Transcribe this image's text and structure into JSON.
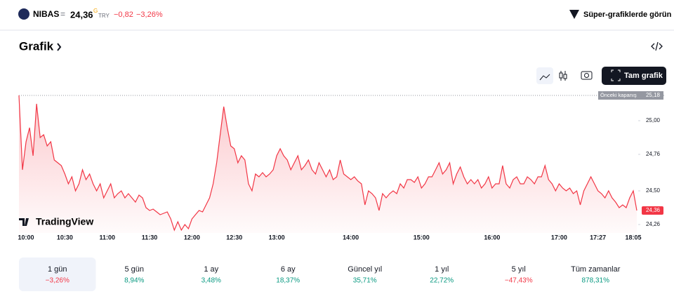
{
  "header": {
    "symbol": "NIBAS",
    "equals": "=",
    "price": "24,36",
    "price_mark": "G",
    "currency": "TRY",
    "change": "−0,82",
    "change_pct": "−3,26%",
    "link": "Süper-grafiklerde görün"
  },
  "section_title": "Grafik",
  "full_chart_button": "Tam grafik",
  "logo": "TradingView",
  "chart_data": {
    "type": "line",
    "color": "#f23645",
    "xlim": [
      0,
      175
    ],
    "xticks": [
      {
        "value": 2,
        "label": "10:00"
      },
      {
        "value": 13,
        "label": "10:30"
      },
      {
        "value": 25,
        "label": "11:00"
      },
      {
        "value": 37,
        "label": "11:30"
      },
      {
        "value": 49,
        "label": "12:00"
      },
      {
        "value": 61,
        "label": "12:30"
      },
      {
        "value": 73,
        "label": "13:00"
      },
      {
        "value": 94,
        "label": "14:00"
      },
      {
        "value": 114,
        "label": "15:00"
      },
      {
        "value": 134,
        "label": "16:00"
      },
      {
        "value": 153,
        "label": "17:00"
      },
      {
        "value": 164,
        "label": "17:27"
      },
      {
        "value": 174,
        "label": "18:05"
      }
    ],
    "ylim": [
      24.2,
      25.22
    ],
    "yticks": [
      {
        "value": 24.26,
        "label": "24,26"
      },
      {
        "value": 24.5,
        "label": "24,50"
      },
      {
        "value": 24.76,
        "label": "24,76"
      },
      {
        "value": 25,
        "label": "25,00"
      }
    ],
    "previous_close": {
      "label": "Önceki kapanış",
      "value": 25.18,
      "value_label": "25,18"
    },
    "last": {
      "value": 24.36,
      "value_label": "24,36"
    },
    "values": [
      25.18,
      24.65,
      24.85,
      24.95,
      24.75,
      25.12,
      24.88,
      24.9,
      24.82,
      24.85,
      24.72,
      24.7,
      24.68,
      24.62,
      24.55,
      24.6,
      24.5,
      24.55,
      24.65,
      24.58,
      24.62,
      24.55,
      24.5,
      24.55,
      24.45,
      24.5,
      24.55,
      24.45,
      24.48,
      24.5,
      24.45,
      24.48,
      24.45,
      24.42,
      24.47,
      24.45,
      24.38,
      24.36,
      24.37,
      24.35,
      24.33,
      24.34,
      24.35,
      24.3,
      24.22,
      24.28,
      24.22,
      24.26,
      24.23,
      24.3,
      24.33,
      24.36,
      24.35,
      24.4,
      24.45,
      24.55,
      24.7,
      24.9,
      25.1,
      24.95,
      24.82,
      24.8,
      24.7,
      24.75,
      24.72,
      24.55,
      24.5,
      24.62,
      24.6,
      24.63,
      24.6,
      24.62,
      24.65,
      24.75,
      24.8,
      24.75,
      24.72,
      24.65,
      24.7,
      24.75,
      24.65,
      24.68,
      24.72,
      24.65,
      24.62,
      24.7,
      24.65,
      24.6,
      24.65,
      24.58,
      24.6,
      24.72,
      24.62,
      24.6,
      24.58,
      24.6,
      24.57,
      24.55,
      24.4,
      24.5,
      24.48,
      24.45,
      24.36,
      24.48,
      24.45,
      24.48,
      24.5,
      24.48,
      24.55,
      24.52,
      24.58,
      24.58,
      24.56,
      24.6,
      24.52,
      24.55,
      24.6,
      24.6,
      24.65,
      24.7,
      24.62,
      24.65,
      24.7,
      24.55,
      24.62,
      24.67,
      24.6,
      24.55,
      24.58,
      24.55,
      24.58,
      24.52,
      24.55,
      24.6,
      24.52,
      24.55,
      24.55,
      24.68,
      24.55,
      24.52,
      24.58,
      24.6,
      24.55,
      24.55,
      24.6,
      24.58,
      24.55,
      24.6,
      24.6,
      24.68,
      24.58,
      24.55,
      24.5,
      24.55,
      24.52,
      24.5,
      24.52,
      24.48,
      24.5,
      24.4,
      24.5,
      24.55,
      24.6,
      24.55,
      24.5,
      24.48,
      24.45,
      24.5,
      24.45,
      24.42,
      24.38,
      24.4,
      24.38,
      24.45,
      24.5,
      24.36
    ]
  },
  "periods": [
    {
      "label": "1 gün",
      "change": "−3,26%",
      "selected": true
    },
    {
      "label": "5 gün",
      "change": "8,94%"
    },
    {
      "label": "1 ay",
      "change": "3,48%"
    },
    {
      "label": "6 ay",
      "change": "18,37%"
    },
    {
      "label": "Güncel yıl",
      "change": "35,71%"
    },
    {
      "label": "1 yıl",
      "change": "22,72%"
    },
    {
      "label": "5 yıl",
      "change": "−47,43%"
    },
    {
      "label": "Tüm zamanlar",
      "change": "878,31%"
    }
  ]
}
